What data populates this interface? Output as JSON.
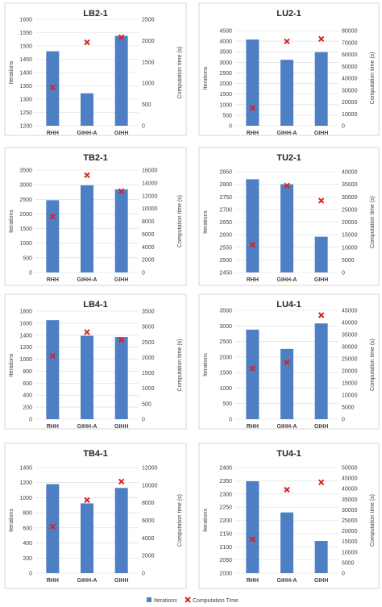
{
  "legend": {
    "bar_label": "Iterations",
    "marker_label": "Computation Time",
    "bar_color": "#4e7fc4",
    "marker_color": "#d42626"
  },
  "chart_data": [
    {
      "type": "bar",
      "title": "LB2-1",
      "categories": [
        "RHH",
        "GIHH-A",
        "GIHH"
      ],
      "series": [
        {
          "name": "Iterations",
          "axis": "left",
          "values": [
            1480,
            1322,
            1538
          ]
        },
        {
          "name": "Computation Time",
          "axis": "right",
          "marker": "x",
          "values": [
            900,
            1960,
            2080
          ]
        }
      ],
      "ylabel": "Iterations",
      "ylim": [
        1200,
        1600
      ],
      "yticks": [
        1200,
        1250,
        1300,
        1350,
        1400,
        1450,
        1500,
        1550,
        1600
      ],
      "y2label": "Computation time (s)",
      "y2lim": [
        0,
        2500
      ],
      "y2ticks": [
        0,
        500,
        1000,
        1500,
        2000,
        2500
      ]
    },
    {
      "type": "bar",
      "title": "LU2-1",
      "categories": [
        "RHH",
        "GIHH-A",
        "GIHH"
      ],
      "series": [
        {
          "name": "Iterations",
          "axis": "left",
          "values": [
            4080,
            3120,
            3480
          ]
        },
        {
          "name": "Computation Time",
          "axis": "right",
          "marker": "x",
          "values": [
            15000,
            71000,
            73000
          ]
        }
      ],
      "ylabel": "Iterations",
      "ylim": [
        0,
        4500
      ],
      "yticks": [
        0,
        500,
        1000,
        1500,
        2000,
        2500,
        3000,
        3500,
        4000,
        4500
      ],
      "y2label": "Computation time (s)",
      "y2lim": [
        0,
        80000
      ],
      "y2ticks": [
        0,
        10000,
        20000,
        30000,
        40000,
        50000,
        60000,
        70000,
        80000
      ]
    },
    {
      "type": "bar",
      "title": "TB2-1",
      "categories": [
        "RHH",
        "GIHH-A",
        "GIHH"
      ],
      "series": [
        {
          "name": "Iterations",
          "axis": "left",
          "values": [
            2470,
            2980,
            2840
          ]
        },
        {
          "name": "Computation Time",
          "axis": "right",
          "marker": "x",
          "values": [
            8700,
            15200,
            12700
          ]
        }
      ],
      "ylabel": "Iterations",
      "ylim": [
        0,
        3500
      ],
      "yticks": [
        0,
        500,
        1000,
        1500,
        2000,
        2500,
        3000,
        3500
      ],
      "y2label": "Computation time (s)",
      "y2lim": [
        0,
        16000
      ],
      "y2ticks": [
        0,
        2000,
        4000,
        6000,
        8000,
        10000,
        12000,
        14000,
        16000
      ]
    },
    {
      "type": "bar",
      "title": "TU2-1",
      "categories": [
        "RHH",
        "GIHH-A",
        "GIHH"
      ],
      "series": [
        {
          "name": "Iterations",
          "axis": "left",
          "values": [
            2820,
            2800,
            2592
          ]
        },
        {
          "name": "Computation Time",
          "axis": "right",
          "marker": "x",
          "values": [
            11000,
            34500,
            28500
          ]
        }
      ],
      "ylabel": "Iterations",
      "ylim": [
        2450,
        2850
      ],
      "yticks": [
        2450,
        2500,
        2550,
        2600,
        2650,
        2700,
        2750,
        2800,
        2850
      ],
      "y2label": "Computation time (s)",
      "y2lim": [
        0,
        40000
      ],
      "y2ticks": [
        0,
        5000,
        10000,
        15000,
        20000,
        25000,
        30000,
        35000,
        40000
      ]
    },
    {
      "type": "bar",
      "title": "LB4-1",
      "categories": [
        "RHH",
        "GIHH-A",
        "GIHH"
      ],
      "series": [
        {
          "name": "Iterations",
          "axis": "left",
          "values": [
            1650,
            1390,
            1370
          ]
        },
        {
          "name": "Computation Time",
          "axis": "right",
          "marker": "x",
          "values": [
            2050,
            2820,
            2570
          ]
        }
      ],
      "ylabel": "Iterations",
      "ylim": [
        0,
        1800
      ],
      "yticks": [
        0,
        200,
        400,
        600,
        800,
        1000,
        1200,
        1400,
        1600,
        1800
      ],
      "y2label": "Computation time (s)",
      "y2lim": [
        0,
        3500
      ],
      "y2ticks": [
        0,
        500,
        1000,
        1500,
        2000,
        2500,
        3000,
        3500
      ]
    },
    {
      "type": "bar",
      "title": "LU4-1",
      "categories": [
        "RHH",
        "GIHH-A",
        "GIHH"
      ],
      "series": [
        {
          "name": "Iterations",
          "axis": "left",
          "values": [
            2880,
            2260,
            3080
          ]
        },
        {
          "name": "Computation Time",
          "axis": "right",
          "marker": "x",
          "values": [
            21000,
            23500,
            43000
          ]
        }
      ],
      "ylabel": "Iterations",
      "ylim": [
        0,
        3500
      ],
      "yticks": [
        0,
        500,
        1000,
        1500,
        2000,
        2500,
        3000,
        3500
      ],
      "y2label": "Computation time (s)",
      "y2lim": [
        0,
        45000
      ],
      "y2ticks": [
        0,
        5000,
        10000,
        15000,
        20000,
        25000,
        30000,
        35000,
        40000,
        45000
      ]
    },
    {
      "type": "bar",
      "title": "TB4-1",
      "categories": [
        "RHH",
        "GIHH-A",
        "GIHH"
      ],
      "series": [
        {
          "name": "Iterations",
          "axis": "left",
          "values": [
            1180,
            925,
            1130
          ]
        },
        {
          "name": "Computation Time",
          "axis": "right",
          "marker": "x",
          "values": [
            5300,
            8300,
            10400
          ]
        }
      ],
      "ylabel": "Iterations",
      "ylim": [
        0,
        1400
      ],
      "yticks": [
        0,
        200,
        400,
        600,
        800,
        1000,
        1200,
        1400
      ],
      "y2label": "Computation time (s)",
      "y2lim": [
        0,
        12000
      ],
      "y2ticks": [
        0,
        2000,
        4000,
        6000,
        8000,
        10000,
        12000
      ]
    },
    {
      "type": "bar",
      "title": "TU4-1",
      "categories": [
        "RHH",
        "GIHH-A",
        "GIHH"
      ],
      "series": [
        {
          "name": "Iterations",
          "axis": "left",
          "values": [
            2348,
            2230,
            2122
          ]
        },
        {
          "name": "Computation Time",
          "axis": "right",
          "marker": "x",
          "values": [
            16000,
            39500,
            43000
          ]
        }
      ],
      "ylabel": "Iterations",
      "ylim": [
        2000,
        2400
      ],
      "yticks": [
        2000,
        2050,
        2100,
        2150,
        2200,
        2250,
        2300,
        2350,
        2400
      ],
      "y2label": "Computation time (s)",
      "y2lim": [
        0,
        50000
      ],
      "y2ticks": [
        0,
        5000,
        10000,
        15000,
        20000,
        25000,
        30000,
        35000,
        40000,
        45000,
        50000
      ]
    }
  ]
}
